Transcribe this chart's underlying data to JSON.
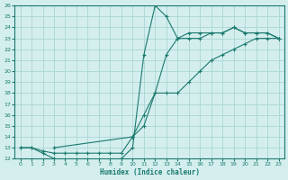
{
  "xlabel": "Humidex (Indice chaleur)",
  "bg_color": "#d4eeee",
  "line_color": "#1a7a6e",
  "grid_color": "#b0d8d8",
  "xlim": [
    -0.5,
    23.5
  ],
  "ylim": [
    12,
    26
  ],
  "xticks": [
    0,
    1,
    2,
    3,
    4,
    5,
    6,
    7,
    8,
    9,
    10,
    11,
    12,
    13,
    14,
    15,
    16,
    17,
    18,
    19,
    20,
    21,
    22,
    23
  ],
  "yticks": [
    12,
    13,
    14,
    15,
    16,
    17,
    18,
    19,
    20,
    21,
    22,
    23,
    24,
    25,
    26
  ],
  "line1_x": [
    0,
    1,
    2,
    3,
    4,
    5,
    6,
    7,
    8,
    9,
    10,
    11,
    12,
    13,
    14,
    15,
    16,
    17,
    18,
    19,
    20,
    21,
    22,
    23
  ],
  "line1_y": [
    13,
    13,
    12.5,
    12,
    11.9,
    11.9,
    11.9,
    11.9,
    11.9,
    12,
    13,
    21.5,
    26,
    25,
    23,
    23,
    23,
    23.5,
    23.5,
    24,
    23.5,
    23.5,
    23.5,
    23
  ],
  "line2_x": [
    0,
    1,
    2,
    3,
    4,
    5,
    6,
    7,
    8,
    9,
    10,
    11,
    12,
    13,
    14,
    15,
    16,
    17,
    18,
    19,
    20,
    21,
    22,
    23
  ],
  "line2_y": [
    13,
    13,
    12.7,
    12.5,
    12.5,
    12.5,
    12.5,
    12.5,
    12.5,
    12.5,
    14,
    16,
    18,
    18,
    18,
    19,
    20,
    21,
    21.5,
    22,
    22.5,
    23,
    23,
    23
  ],
  "line3_x": [
    3,
    10,
    11,
    12,
    13,
    14,
    15,
    16,
    17,
    18,
    19,
    20,
    21,
    22,
    23
  ],
  "line3_y": [
    13,
    14,
    15,
    18,
    21.5,
    23,
    23.5,
    23.5,
    23.5,
    23.5,
    24,
    23.5,
    23.5,
    23.5,
    23
  ]
}
